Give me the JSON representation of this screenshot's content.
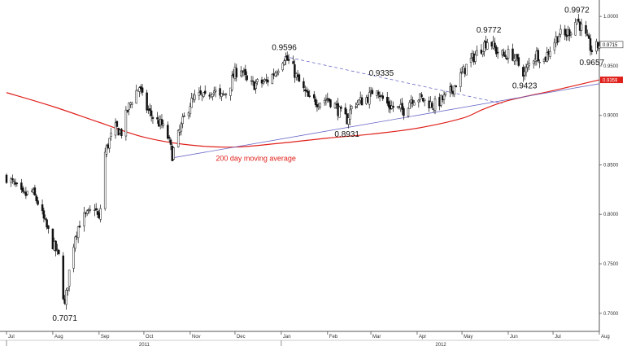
{
  "chart_data": {
    "type": "candlestick",
    "x_range": [
      "2011-07-01",
      "2012-08-01"
    ],
    "ylim": [
      0.685,
      1.01
    ],
    "y_ticks": [
      {
        "value": 0.7,
        "label": "0.7000"
      },
      {
        "value": 0.75,
        "label": "0.7500"
      },
      {
        "value": 0.8,
        "label": "0.8000"
      },
      {
        "value": 0.85,
        "label": "0.8500"
      },
      {
        "value": 0.9,
        "label": "0.9000"
      },
      {
        "value": 0.95,
        "label": "0.9500"
      },
      {
        "value": 1.0,
        "label": "1.0000"
      }
    ],
    "x_ticks": [
      {
        "date": "2011-07-01",
        "label": "Jul"
      },
      {
        "date": "2011-08-01",
        "label": "Aug"
      },
      {
        "date": "2011-09-01",
        "label": "Sep"
      },
      {
        "date": "2011-10-01",
        "label": "Oct"
      },
      {
        "date": "2011-11-01",
        "label": "Nov"
      },
      {
        "date": "2011-12-01",
        "label": "Dec"
      },
      {
        "date": "2012-01-01",
        "label": "Jan"
      },
      {
        "date": "2012-02-01",
        "label": "Feb"
      },
      {
        "date": "2012-03-01",
        "label": "Mar"
      },
      {
        "date": "2012-04-01",
        "label": "Apr"
      },
      {
        "date": "2012-05-01",
        "label": "May"
      },
      {
        "date": "2012-06-01",
        "label": "Jun"
      },
      {
        "date": "2012-07-01",
        "label": "Jul"
      },
      {
        "date": "2012-08-01",
        "label": "Aug"
      }
    ],
    "year_labels": [
      {
        "date": "2011-07-01",
        "label": "2011"
      },
      {
        "date": "2012-01-01",
        "label": "2012"
      }
    ],
    "price_path": [
      [
        "2011-07-01",
        0.838
      ],
      [
        "2011-07-06",
        0.83
      ],
      [
        "2011-07-12",
        0.818
      ],
      [
        "2011-07-18",
        0.823
      ],
      [
        "2011-07-22",
        0.812
      ],
      [
        "2011-07-27",
        0.79
      ],
      [
        "2011-08-01",
        0.77
      ],
      [
        "2011-08-05",
        0.757
      ],
      [
        "2011-08-09",
        0.7071
      ],
      [
        "2011-08-12",
        0.742
      ],
      [
        "2011-08-16",
        0.78
      ],
      [
        "2011-08-20",
        0.795
      ],
      [
        "2011-08-25",
        0.8
      ],
      [
        "2011-08-29",
        0.808
      ],
      [
        "2011-09-01",
        0.793
      ],
      [
        "2011-09-03",
        0.82
      ],
      [
        "2011-09-05",
        0.862
      ],
      [
        "2011-09-08",
        0.875
      ],
      [
        "2011-09-12",
        0.887
      ],
      [
        "2011-09-16",
        0.883
      ],
      [
        "2011-09-20",
        0.905
      ],
      [
        "2011-09-24",
        0.92
      ],
      [
        "2011-09-28",
        0.929
      ],
      [
        "2011-10-01",
        0.912
      ],
      [
        "2011-10-05",
        0.902
      ],
      [
        "2011-10-09",
        0.895
      ],
      [
        "2011-10-13",
        0.89
      ],
      [
        "2011-10-17",
        0.878
      ],
      [
        "2011-10-20",
        0.86
      ],
      [
        "2011-10-23",
        0.875
      ],
      [
        "2011-10-27",
        0.893
      ],
      [
        "2011-11-01",
        0.912
      ],
      [
        "2011-11-06",
        0.92
      ],
      [
        "2011-11-11",
        0.917
      ],
      [
        "2011-11-16",
        0.927
      ],
      [
        "2011-11-21",
        0.917
      ],
      [
        "2011-11-26",
        0.925
      ],
      [
        "2011-12-01",
        0.943
      ],
      [
        "2011-12-05",
        0.948
      ],
      [
        "2011-12-10",
        0.93
      ],
      [
        "2011-12-16",
        0.932
      ],
      [
        "2011-12-22",
        0.934
      ],
      [
        "2011-12-28",
        0.944
      ],
      [
        "2012-01-01",
        0.955
      ],
      [
        "2012-01-03",
        0.9596
      ],
      [
        "2012-01-08",
        0.95
      ],
      [
        "2012-01-12",
        0.936
      ],
      [
        "2012-01-16",
        0.925
      ],
      [
        "2012-01-20",
        0.915
      ],
      [
        "2012-01-26",
        0.914
      ],
      [
        "2012-02-01",
        0.917
      ],
      [
        "2012-02-06",
        0.91
      ],
      [
        "2012-02-10",
        0.901
      ],
      [
        "2012-02-14",
        0.896
      ],
      [
        "2012-02-18",
        0.912
      ],
      [
        "2012-02-23",
        0.914
      ],
      [
        "2012-03-01",
        0.92
      ],
      [
        "2012-03-04",
        0.933
      ],
      [
        "2012-03-08",
        0.918
      ],
      [
        "2012-03-13",
        0.91
      ],
      [
        "2012-03-18",
        0.907
      ],
      [
        "2012-03-23",
        0.905
      ],
      [
        "2012-03-28",
        0.917
      ],
      [
        "2012-04-02",
        0.918
      ],
      [
        "2012-04-07",
        0.914
      ],
      [
        "2012-04-12",
        0.91
      ],
      [
        "2012-04-17",
        0.915
      ],
      [
        "2012-04-22",
        0.921
      ],
      [
        "2012-04-26",
        0.93
      ],
      [
        "2012-05-01",
        0.942
      ],
      [
        "2012-05-05",
        0.952
      ],
      [
        "2012-05-10",
        0.961
      ],
      [
        "2012-05-15",
        0.97
      ],
      [
        "2012-05-19",
        0.9772
      ],
      [
        "2012-05-24",
        0.965
      ],
      [
        "2012-05-29",
        0.96
      ],
      [
        "2012-06-03",
        0.963
      ],
      [
        "2012-06-08",
        0.951
      ],
      [
        "2012-06-12",
        0.9423
      ],
      [
        "2012-06-16",
        0.955
      ],
      [
        "2012-06-20",
        0.962
      ],
      [
        "2012-06-25",
        0.956
      ],
      [
        "2012-07-01",
        0.973
      ],
      [
        "2012-07-05",
        0.982
      ],
      [
        "2012-07-09",
        0.98
      ],
      [
        "2012-07-13",
        0.987
      ],
      [
        "2012-07-17",
        0.9972
      ],
      [
        "2012-07-21",
        0.985
      ],
      [
        "2012-07-24",
        0.975
      ],
      [
        "2012-07-27",
        0.9657
      ],
      [
        "2012-07-31",
        0.97
      ],
      [
        "2012-08-01",
        0.972
      ]
    ],
    "last_price": {
      "value": 0.9715,
      "label": "0.9715"
    },
    "moving_average": {
      "name": "200 day moving average",
      "last_value": 0.9359,
      "last_label": "0.9359",
      "color": "#e0201b",
      "points": [
        [
          "2011-07-01",
          0.923
        ],
        [
          "2011-08-01",
          0.909
        ],
        [
          "2011-09-01",
          0.893
        ],
        [
          "2011-10-01",
          0.878
        ],
        [
          "2011-11-01",
          0.87
        ],
        [
          "2011-12-01",
          0.868
        ],
        [
          "2012-01-01",
          0.872
        ],
        [
          "2012-02-01",
          0.877
        ],
        [
          "2012-03-01",
          0.881
        ],
        [
          "2012-04-01",
          0.887
        ],
        [
          "2012-05-01",
          0.897
        ],
        [
          "2012-05-15",
          0.906
        ],
        [
          "2012-06-01",
          0.915
        ],
        [
          "2012-07-01",
          0.925
        ],
        [
          "2012-08-01",
          0.9359
        ]
      ]
    },
    "trendlines": [
      {
        "name": "support",
        "color": "#6a6ac8",
        "dashed": false,
        "from": [
          "2011-10-20",
          0.857
        ],
        "to": [
          "2012-08-01",
          0.932
        ]
      },
      {
        "name": "resistance",
        "color": "#6a6ac8",
        "dashed": true,
        "from": [
          "2012-01-03",
          0.9596
        ],
        "to": [
          "2012-05-28",
          0.912
        ]
      }
    ],
    "annotations": [
      {
        "text": "0.7071",
        "date": "2011-08-09",
        "value": 0.7071,
        "placement": "below"
      },
      {
        "text": "0.9596",
        "date": "2012-01-03",
        "value": 0.9596,
        "placement": "above"
      },
      {
        "text": "0.9335",
        "date": "2012-03-08",
        "value": 0.9335,
        "placement": "above"
      },
      {
        "text": "0.8931",
        "date": "2012-02-14",
        "value": 0.8931,
        "placement": "below"
      },
      {
        "text": "0.9772",
        "date": "2012-05-19",
        "value": 0.9772,
        "placement": "above"
      },
      {
        "text": "0.9423",
        "date": "2012-06-12",
        "value": 0.9423,
        "placement": "below"
      },
      {
        "text": "0.9972",
        "date": "2012-07-17",
        "value": 0.9972,
        "placement": "above"
      },
      {
        "text": "0.9657",
        "date": "2012-07-27",
        "value": 0.9657,
        "placement": "below"
      },
      {
        "text": "200 day moving average",
        "date": "2011-12-15",
        "value": 0.854,
        "placement": "label"
      }
    ],
    "grid": false,
    "y_axis_side": "right"
  }
}
